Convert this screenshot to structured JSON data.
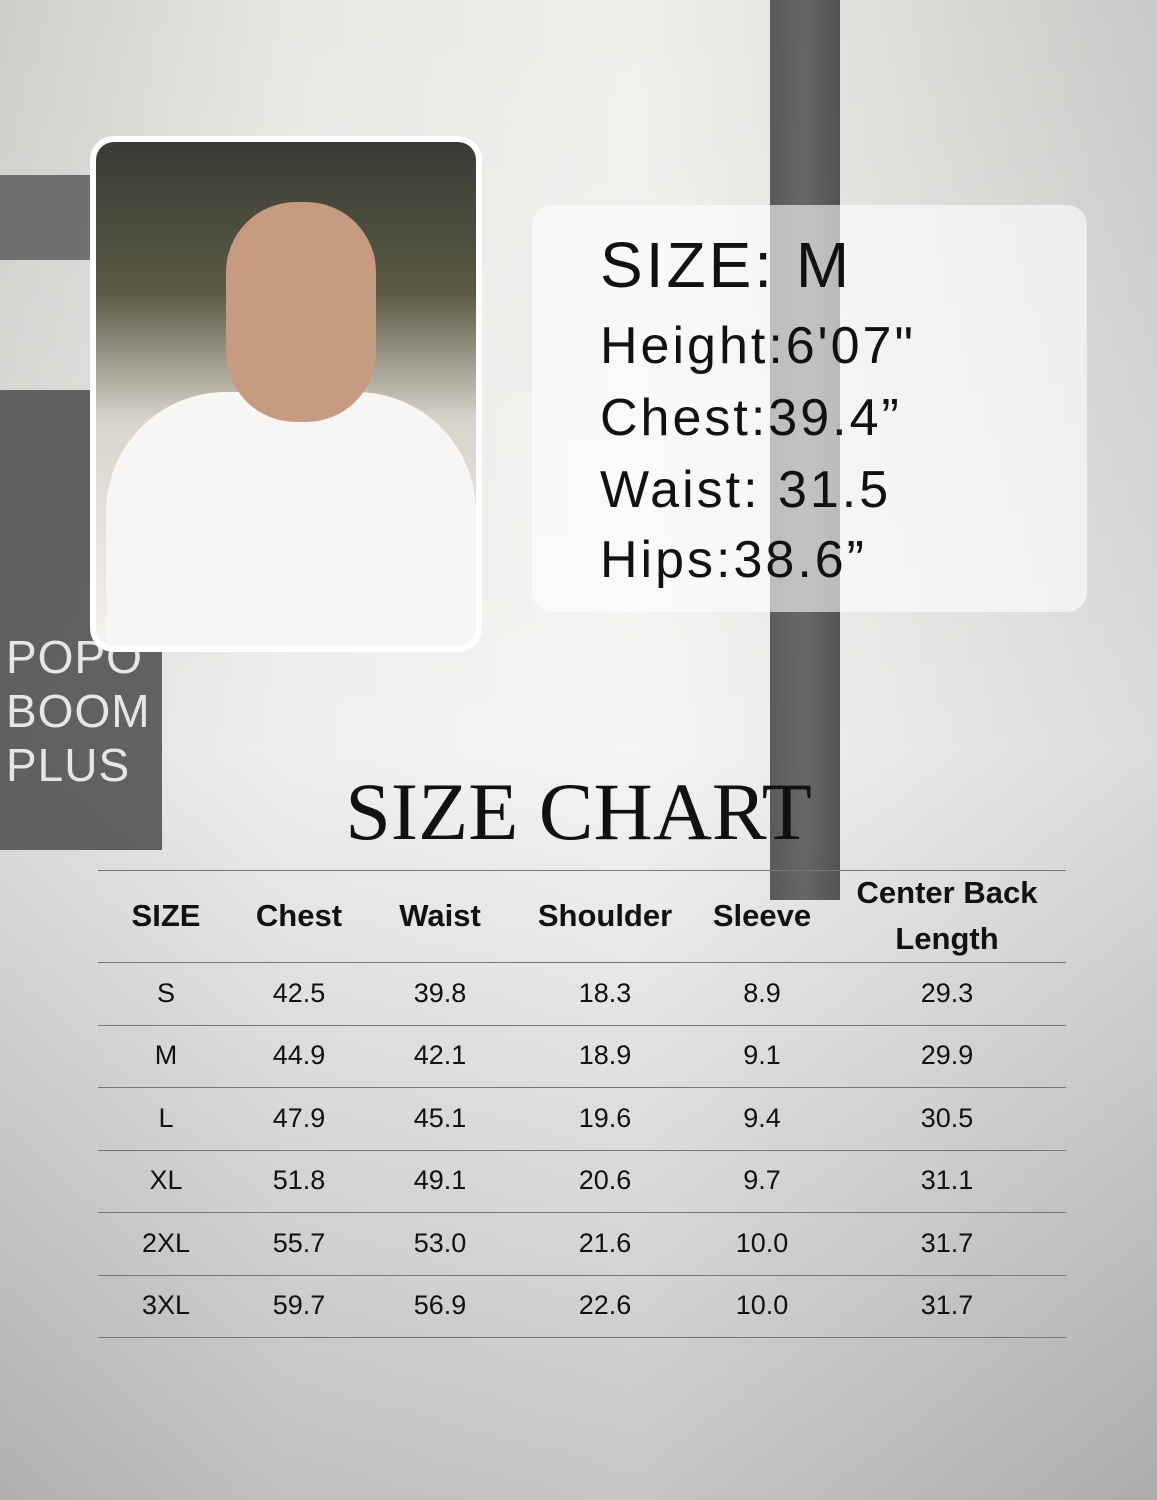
{
  "sign": {
    "lines": [
      "POPO",
      "BOOM",
      "PLUS"
    ]
  },
  "model": {
    "size": "SIZE: M",
    "lines": [
      "Height:6'07\"",
      "Chest:39.4”",
      "Waist: 31.5",
      "Hips:38.6”"
    ]
  },
  "size_chart": {
    "title": "SIZE CHART",
    "headers": [
      "SIZE",
      "Chest",
      "Waist",
      "Shoulder",
      "Sleeve",
      "Center Back Length"
    ],
    "rows": [
      [
        "S",
        "42.5",
        "39.8",
        "18.3",
        "8.9",
        "29.3"
      ],
      [
        "M",
        "44.9",
        "42.1",
        "18.9",
        "9.1",
        "29.9"
      ],
      [
        "L",
        "47.9",
        "45.1",
        "19.6",
        "9.4",
        "30.5"
      ],
      [
        "XL",
        "51.8",
        "49.1",
        "20.6",
        "9.7",
        "31.1"
      ],
      [
        "2XL",
        "55.7",
        "53.0",
        "21.6",
        "10.0",
        "31.7"
      ],
      [
        "3XL",
        "59.7",
        "56.9",
        "22.6",
        "10.0",
        "31.7"
      ]
    ]
  }
}
